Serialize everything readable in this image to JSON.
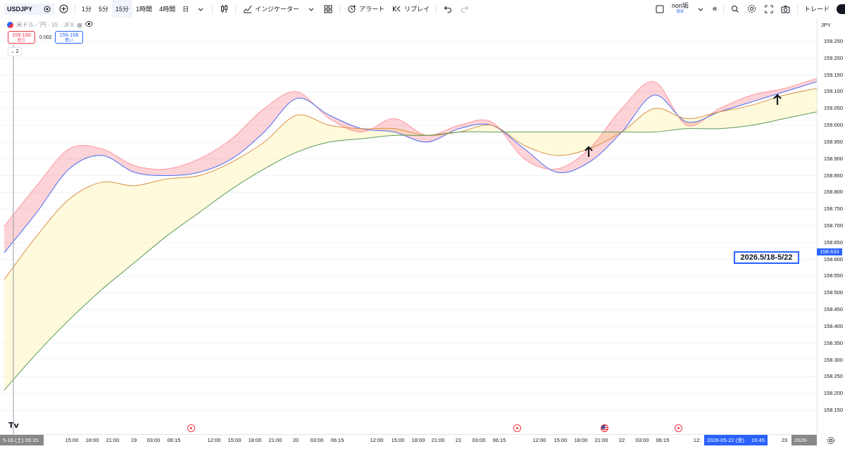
{
  "toolbar": {
    "symbol": "USDJPY",
    "intervals": [
      "1分",
      "5分",
      "15分",
      "1時間",
      "4時間",
      "日"
    ],
    "active_interval": "15分",
    "indicators_label": "インジケーター",
    "alert_label": "アラート",
    "replay_label": "リプレイ",
    "layout_name": "nori垢",
    "layout_status": "保存",
    "extra_small": "検",
    "trade_label": "トレード"
  },
  "legend": {
    "title": "米ドル／円 · 15 · JFX",
    "sell_price": "159.166",
    "sell_label": "売り",
    "buy_price": "159.168",
    "buy_label": "買い",
    "spread": "0.002",
    "collapse_count": "2"
  },
  "price_scale": {
    "currency": "JPY",
    "ticks": [
      "159.250",
      "159.200",
      "159.150",
      "159.100",
      "159.050",
      "159.000",
      "158.950",
      "158.900",
      "158.850",
      "158.800",
      "158.750",
      "158.700",
      "158.650",
      "158.600",
      "158.550",
      "158.500",
      "158.450",
      "158.400",
      "158.350",
      "158.300",
      "158.250",
      "158.200",
      "158.150"
    ],
    "current_price": "158.633"
  },
  "time_axis": {
    "left_label": "5-16 (土)  05:15",
    "ticks": [
      "15:00",
      "18:00",
      "21:00",
      "19",
      "03:00",
      "06:15",
      "12:00",
      "15:00",
      "18:00",
      "21:00",
      "20",
      "03:00",
      "06:15",
      "12:00",
      "15:00",
      "18:00",
      "21:00",
      "21",
      "03:00",
      "06:15",
      "12:00",
      "15:00",
      "18:00",
      "21:00",
      "22",
      "03:00",
      "06:15",
      "12:",
      "23"
    ],
    "cursor_label": "2026-05-22 (金)",
    "cursor_time": "16:45",
    "right_label": "2026-05-"
  },
  "annotation": "2026.5/18-5/22",
  "colors": {
    "accent": "#2962ff",
    "bearish": "#f23645",
    "ema_fast": "#ff9aa2",
    "ema_slow_blue": "#4a6cf7",
    "ema_orange": "#d9904a",
    "ema_green": "#5b9a5b"
  },
  "chart_data": {
    "type": "line",
    "title": "",
    "xlabel": "",
    "ylabel": "JPY",
    "ylim": [
      158.125,
      159.275
    ],
    "x": [
      0,
      0.04,
      0.08,
      0.12,
      0.16,
      0.2,
      0.24,
      0.28,
      0.32,
      0.36,
      0.4,
      0.44,
      0.48,
      0.52,
      0.56,
      0.6,
      0.64,
      0.68,
      0.72,
      0.76,
      0.8,
      0.84,
      0.88,
      0.92,
      0.96,
      1.0
    ],
    "series": [
      {
        "values": [
          158.7,
          158.82,
          158.93,
          158.93,
          158.88,
          158.87,
          158.9,
          158.96,
          159.05,
          159.1,
          159.02,
          158.98,
          159.02,
          158.97,
          159.0,
          159.01,
          158.9,
          158.87,
          158.93,
          159.05,
          159.13,
          159.0,
          159.05,
          159.09,
          159.11,
          159.14
        ]
      },
      {
        "values": [
          158.62,
          158.74,
          158.87,
          158.91,
          158.86,
          158.85,
          158.86,
          158.9,
          158.98,
          159.08,
          159.03,
          158.99,
          158.98,
          158.95,
          158.99,
          159.0,
          158.93,
          158.86,
          158.89,
          158.98,
          159.09,
          159.01,
          159.04,
          159.07,
          159.1,
          159.13
        ]
      },
      {
        "values": [
          158.54,
          158.67,
          158.78,
          158.83,
          158.82,
          158.84,
          158.85,
          158.89,
          158.95,
          159.03,
          159.0,
          158.99,
          158.99,
          158.97,
          158.98,
          159.0,
          158.94,
          158.91,
          158.93,
          158.98,
          159.05,
          159.02,
          159.04,
          159.06,
          159.09,
          159.11
        ]
      },
      {
        "values": [
          158.21,
          158.32,
          158.42,
          158.51,
          158.59,
          158.67,
          158.74,
          158.81,
          158.87,
          158.92,
          158.95,
          158.96,
          158.97,
          158.97,
          158.98,
          158.98,
          158.98,
          158.98,
          158.98,
          158.98,
          158.98,
          158.99,
          158.99,
          159.0,
          159.02,
          159.04
        ]
      }
    ]
  }
}
